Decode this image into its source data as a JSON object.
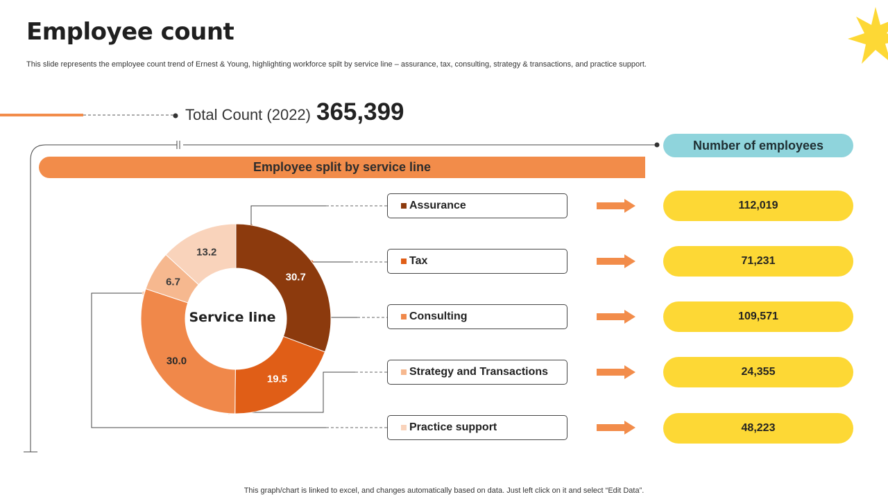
{
  "slide": {
    "title": "Employee count",
    "subtitle": "This slide represents the employee count trend of Ernest & Young,  highlighting workforce spilt by service line – assurance, tax,  consulting, strategy & transactions, and practice support.",
    "footer": "This graph/chart is linked to excel,  and changes automatically based on data. Just left click on it and select “Edit Data”."
  },
  "total": {
    "label": "Total Count (2022)",
    "value": "365,399"
  },
  "headers": {
    "split": "Employee split by service line",
    "employees": "Number of employees"
  },
  "chart_data": {
    "type": "pie",
    "title": "Service line",
    "categories": [
      "Assurance",
      "Tax",
      "Consulting",
      "Strategy and Transactions",
      "Practice support"
    ],
    "values": [
      30.7,
      19.5,
      30.0,
      6.7,
      13.2
    ],
    "labels": [
      "30.7",
      "19.5",
      "30.0",
      "6.7",
      "13.2"
    ],
    "colors": [
      "#8c3a0d",
      "#e05e17",
      "#f0884a",
      "#f6b88f",
      "#f9d3bb"
    ],
    "employee_counts": [
      "112,019",
      "71,231",
      "109,571",
      "24,355",
      "48,223"
    ]
  },
  "theme": {
    "accent": "#f28c4a",
    "pill": "#fdd835",
    "header_pill": "#8fd4dc",
    "sun": "#fdd835"
  }
}
